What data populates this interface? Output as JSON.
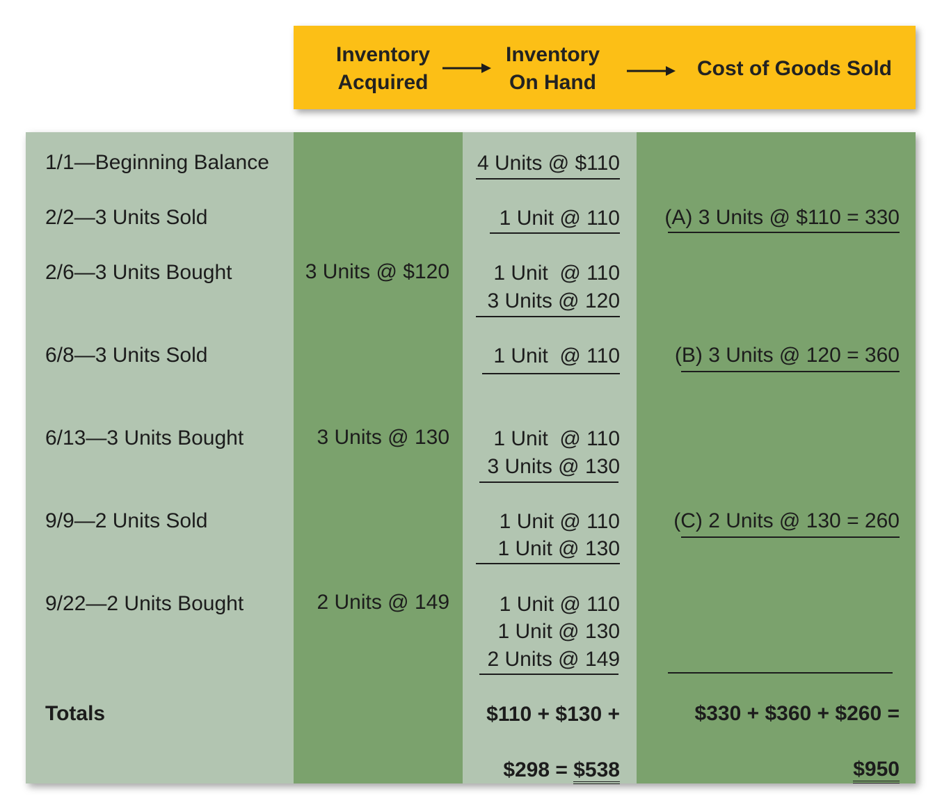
{
  "header": {
    "col_acquired": [
      "Inventory",
      "Acquired"
    ],
    "col_on_hand": [
      "Inventory",
      "On Hand"
    ],
    "col_cogs": "Cost of Goods Sold"
  },
  "rows": [
    {
      "label": "1/1—Beginning Balance",
      "acquired": "",
      "on_hand": [
        "4 Units @ $110"
      ],
      "cogs": ""
    },
    {
      "label": "2/2—3 Units Sold",
      "acquired": "",
      "on_hand": [
        "1 Unit @ 110"
      ],
      "cogs": "(A) 3 Units @ $110 = 330"
    },
    {
      "label": "2/6—3 Units Bought",
      "acquired": "3 Units @ $120",
      "on_hand": [
        "1 Unit  @ 110",
        "3 Units @ 120"
      ],
      "cogs": ""
    },
    {
      "label": "6/8—3 Units Sold",
      "acquired": "",
      "on_hand": [
        "1 Unit  @ 110"
      ],
      "cogs": "(B) 3 Units @ 120 = 360"
    },
    {
      "label": "6/13—3 Units Bought",
      "acquired": "3 Units @ 130",
      "on_hand": [
        "1 Unit  @ 110",
        "3 Units @ 130"
      ],
      "cogs": ""
    },
    {
      "label": "9/9—2 Units Sold",
      "acquired": "",
      "on_hand": [
        "1 Unit @ 110",
        "1 Unit @ 130"
      ],
      "cogs": "(C) 2 Units @ 130 = 260"
    },
    {
      "label": "9/22—2 Units Bought",
      "acquired": "2 Units @ 149",
      "on_hand": [
        "1 Unit @ 110",
        "1 Unit @ 130",
        "2 Units @ 149"
      ],
      "cogs": ""
    }
  ],
  "totals": {
    "label": "Totals",
    "on_hand_line1": "$110 + $130 +",
    "on_hand_line2_prefix": "$298 = ",
    "on_hand_total": "$538",
    "cogs_line1": "$330 + $360 + $260 =",
    "cogs_total": "$950"
  },
  "colors": {
    "header": "#fcbf16",
    "light_column": "#b2c5b1",
    "dark_column": "#7ba26d"
  }
}
